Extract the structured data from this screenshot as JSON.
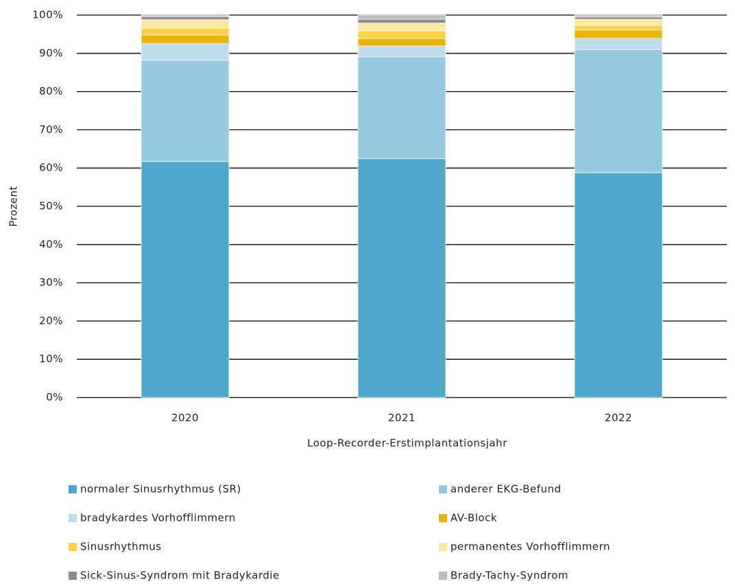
{
  "chart_data": {
    "type": "stacked_bar",
    "x_label": "Loop-Recorder-Erstimplantationsjahr",
    "y_label": "Prozent",
    "categories": [
      "2020",
      "2021",
      "2022"
    ],
    "series": [
      {
        "name": "normaler Sinusrhythmus (SR)",
        "color": "#4ea8cb",
        "values": [
          61.7,
          62.5,
          58.8
        ]
      },
      {
        "name": "anderer EKG-Befund",
        "color": "#94c9e0",
        "values": [
          26.5,
          26.6,
          32.2
        ]
      },
      {
        "name": "bradykardes Vorhofflimmern",
        "color": "#bfdcec",
        "values": [
          4.3,
          2.8,
          2.9
        ]
      },
      {
        "name": "AV-Block",
        "color": "#e9b40c",
        "values": [
          2.3,
          2.0,
          2.2
        ]
      },
      {
        "name": "Sinusrhythmus",
        "color": "#fdd24a",
        "values": [
          1.8,
          2.0,
          1.2
        ]
      },
      {
        "name": "permanentes Vorhofflimmern",
        "color": "#fde8a0",
        "values": [
          2.2,
          2.0,
          1.6
        ]
      },
      {
        "name": "Sick-Sinus-Syndrom mit Bradykardie",
        "color": "#8a8a8a",
        "values": [
          0.8,
          1.0,
          0.6
        ]
      },
      {
        "name": "Brady-Tachy-Syndrom",
        "color": "#bcbcbc",
        "values": [
          0.4,
          1.1,
          0.5
        ]
      }
    ],
    "ylim": [
      0,
      100
    ],
    "yticks": [
      {
        "value": 0,
        "label": "0%"
      },
      {
        "value": 10,
        "label": "10%"
      },
      {
        "value": 20,
        "label": "20%"
      },
      {
        "value": 30,
        "label": "30%"
      },
      {
        "value": 40,
        "label": "40%"
      },
      {
        "value": 50,
        "label": "50%"
      },
      {
        "value": 60,
        "label": "60%"
      },
      {
        "value": 70,
        "label": "70%"
      },
      {
        "value": 80,
        "label": "80%"
      },
      {
        "value": 90,
        "label": "90%"
      },
      {
        "value": 100,
        "label": "100%"
      }
    ],
    "grid": true
  }
}
